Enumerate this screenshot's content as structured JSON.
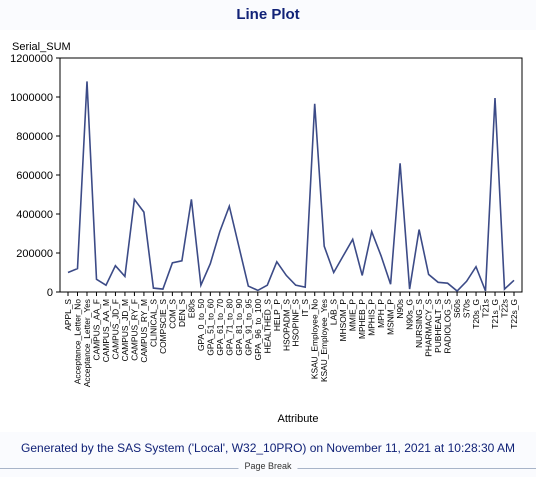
{
  "title": "Line Plot",
  "footer": "Generated by the SAS System ('Local', W32_10PRO) on November 11, 2021 at 10:28:30 AM",
  "page_break": "Page Break",
  "colors": {
    "line": "#3c4b87",
    "title": "#112277",
    "axis": "#000000"
  },
  "chart_data": {
    "type": "line",
    "ylabel": "Serial_SUM",
    "xlabel": "Attribute",
    "ylim": [
      0,
      1200000
    ],
    "yticks": [
      0,
      200000,
      400000,
      600000,
      800000,
      1000000,
      1200000
    ],
    "ytick_labels": [
      "0",
      "200000",
      "400000",
      "600000",
      "800000",
      "1000000",
      "1200000"
    ],
    "grid": false,
    "categories": [
      "APPL_S",
      "Acceptance_Letter_No",
      "Acceptance_Letter_Yes",
      "CAMPUS_AA_F",
      "CAMPUS_AA_M",
      "CAMPUS_JD_F",
      "CAMPUS_JD_M",
      "CAMPUS_RY_F",
      "CAMPUS_RY_M",
      "CLINICAL_S",
      "COMPSCIE_S",
      "COM_S",
      "DEN_S",
      "E80s",
      "GPA_0_to_50",
      "GPA_51_to_60",
      "GPA_61_to_70",
      "GPA_71_to_80",
      "GPA_81_to_90",
      "GPA_91_to_95",
      "GPA_96_to_100",
      "HEALTHED_S",
      "HELP_P",
      "HSOPADM_S",
      "HSOPINF_S",
      "IT_S",
      "KSAU_Employee_No",
      "KSAU_Employee_Yes",
      "LAB_S",
      "MHSOM_P",
      "MMIE_P",
      "MPHEB_P",
      "MPHIS_P",
      "MPH_P",
      "MSNM_P",
      "N90s",
      "N90s_G",
      "NURSING_S",
      "PHARMACY_S",
      "PUBHEALT_S",
      "RADIOLOG_S",
      "S60s",
      "S70s",
      "T20s_G",
      "T21s",
      "T21s_G",
      "T22s",
      "T22s_G"
    ],
    "series": [
      {
        "values": [
          100000,
          120000,
          1080000,
          65000,
          35000,
          135000,
          80000,
          475000,
          410000,
          20000,
          15000,
          150000,
          160000,
          475000,
          35000,
          145000,
          310000,
          440000,
          235000,
          30000,
          8000,
          35000,
          155000,
          85000,
          35000,
          25000,
          965000,
          235000,
          100000,
          185000,
          270000,
          85000,
          310000,
          185000,
          40000,
          660000,
          15000,
          320000,
          90000,
          50000,
          45000,
          5000,
          55000,
          130000,
          5000,
          995000,
          15000,
          60000
        ]
      }
    ]
  }
}
